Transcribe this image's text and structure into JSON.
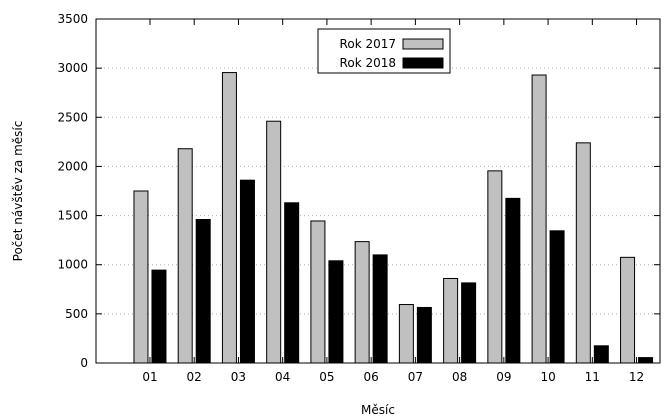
{
  "chart_data": {
    "type": "bar",
    "categories": [
      "01",
      "02",
      "03",
      "04",
      "05",
      "06",
      "07",
      "08",
      "09",
      "10",
      "11",
      "12"
    ],
    "series": [
      {
        "name": "Rok 2017",
        "color": "#c0c0c0",
        "values": [
          1750,
          2180,
          2955,
          2460,
          1445,
          1235,
          595,
          860,
          1955,
          2930,
          2240,
          1075
        ]
      },
      {
        "name": "Rok 2018",
        "color": "#000000",
        "values": [
          945,
          1460,
          1860,
          1630,
          1040,
          1100,
          565,
          815,
          1675,
          1345,
          175,
          55
        ]
      }
    ],
    "xlabel": "Měsíc",
    "ylabel": "Počet návštěv za měsíc",
    "ylim": [
      0,
      3500
    ],
    "yticks": [
      "0",
      "500",
      "1000",
      "1500",
      "2000",
      "2500",
      "3000",
      "3500"
    ],
    "grid": true,
    "legend_position": "top-center"
  }
}
